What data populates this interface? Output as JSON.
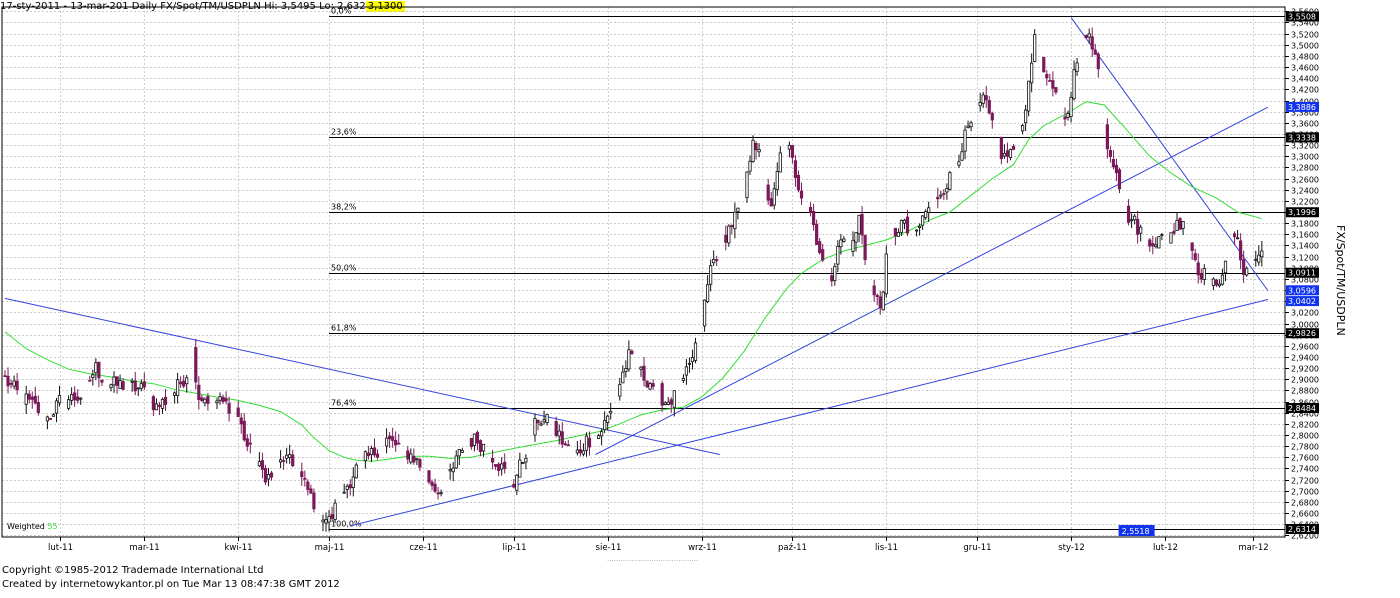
{
  "header": {
    "text": "17-sty-2011 - 13-mar-201  Daily FX/Spot/TM/USDPLN Hi: 3,5495 Lo: 2,632",
    "last_value": "3,1300"
  },
  "footer": {
    "copyright": "Copyright ©1985-2012 Trademade International Ltd",
    "created": "Created by internetowykantor.pl   on Tue Mar 13 08:47:38 GMT 2012"
  },
  "legend": {
    "prefix": "Weighted ",
    "period": "55"
  },
  "colors": {
    "up": "#111111",
    "down": "#7a1a5a",
    "ma": "#33dd33",
    "trend": "#3344dd",
    "fib": "#000000",
    "grid": "#bbbbbb",
    "tag_black": "#000000",
    "tag_blue": "#1133ee",
    "side_label": "#b8bce6"
  },
  "chart_data": {
    "type": "candlestick",
    "title": "Daily FX/Spot/TM/USDPLN",
    "ylabel": "FX/Spot/TM/USDPLN",
    "ylim": [
      2.617,
      3.5678
    ],
    "x_range": [
      "17-sty-2011",
      "13-mar-2012"
    ],
    "y_tick_start": 2.62,
    "y_tick_step": 0.02,
    "y_tick_end": 3.56,
    "x_ticks": [
      {
        "label": "lut-11",
        "day": 18
      },
      {
        "label": "mar-11",
        "day": 46
      },
      {
        "label": "kwi-11",
        "day": 77
      },
      {
        "label": "maj-11",
        "day": 107
      },
      {
        "label": "cze-11",
        "day": 138
      },
      {
        "label": "lip-11",
        "day": 168
      },
      {
        "label": "sie-11",
        "day": 199
      },
      {
        "label": "wrz-11",
        "day": 230
      },
      {
        "label": "paź-11",
        "day": 260
      },
      {
        "label": "lis-11",
        "day": 291
      },
      {
        "label": "gru-11",
        "day": 321
      },
      {
        "label": "sty-12",
        "day": 352
      },
      {
        "label": "lut-12",
        "day": 383
      },
      {
        "label": "mar-12",
        "day": 412
      }
    ],
    "fibonacci": [
      {
        "label": "0,0%",
        "value": 3.5508
      },
      {
        "label": "23,6%",
        "value": 3.3338
      },
      {
        "label": "38,2%",
        "value": 3.1996
      },
      {
        "label": "50,0%",
        "value": 3.0911
      },
      {
        "label": "61,8%",
        "value": 2.9826
      },
      {
        "label": "76,4%",
        "value": 2.8484
      },
      {
        "label": "100,0%",
        "value": 2.6314
      }
    ],
    "price_tags": [
      {
        "text": "3,5508",
        "value": 3.5508,
        "style": "black"
      },
      {
        "text": "3,3886",
        "value": 3.3886,
        "style": "blue"
      },
      {
        "text": "3,3338",
        "value": 3.3338,
        "style": "black"
      },
      {
        "text": "3,1996",
        "value": 3.1996,
        "style": "black"
      },
      {
        "text": "3,0911",
        "value": 3.0911,
        "style": "black"
      },
      {
        "text": "3,0596",
        "value": 3.0596,
        "style": "blue"
      },
      {
        "text": "3,0402",
        "value": 3.0402,
        "style": "blue"
      },
      {
        "text": "2,9826",
        "value": 2.9826,
        "style": "black"
      },
      {
        "text": "2,8484",
        "value": 2.8484,
        "style": "black"
      },
      {
        "text": "2,6314",
        "value": 2.6314,
        "style": "black"
      }
    ],
    "low_marker": {
      "text": "2,5518",
      "day": 372
    },
    "trendlines": [
      {
        "x1": 0,
        "y1": 3.045,
        "x2": 236,
        "y2": 2.765
      },
      {
        "x1": 114,
        "y1": 2.637,
        "x2": 417,
        "y2": 3.043
      },
      {
        "x1": 195,
        "y1": 2.765,
        "x2": 417,
        "y2": 3.388
      },
      {
        "x1": 352,
        "y1": 3.549,
        "x2": 417,
        "y2": 3.059
      }
    ],
    "ma_points": [
      [
        0,
        2.985
      ],
      [
        7,
        2.955
      ],
      [
        14,
        2.935
      ],
      [
        21,
        2.918
      ],
      [
        28,
        2.91
      ],
      [
        35,
        2.904
      ],
      [
        42,
        2.897
      ],
      [
        49,
        2.892
      ],
      [
        56,
        2.882
      ],
      [
        63,
        2.875
      ],
      [
        70,
        2.868
      ],
      [
        77,
        2.862
      ],
      [
        84,
        2.853
      ],
      [
        91,
        2.842
      ],
      [
        98,
        2.818
      ],
      [
        102,
        2.795
      ],
      [
        107,
        2.772
      ],
      [
        112,
        2.76
      ],
      [
        116,
        2.755
      ],
      [
        121,
        2.753
      ],
      [
        126,
        2.756
      ],
      [
        133,
        2.762
      ],
      [
        140,
        2.762
      ],
      [
        147,
        2.758
      ],
      [
        154,
        2.76
      ],
      [
        161,
        2.768
      ],
      [
        168,
        2.776
      ],
      [
        175,
        2.783
      ],
      [
        182,
        2.79
      ],
      [
        189,
        2.798
      ],
      [
        196,
        2.806
      ],
      [
        203,
        2.82
      ],
      [
        210,
        2.836
      ],
      [
        217,
        2.845
      ],
      [
        224,
        2.85
      ],
      [
        230,
        2.868
      ],
      [
        237,
        2.902
      ],
      [
        244,
        2.95
      ],
      [
        251,
        3.01
      ],
      [
        258,
        3.062
      ],
      [
        263,
        3.09
      ],
      [
        270,
        3.115
      ],
      [
        277,
        3.13
      ],
      [
        284,
        3.14
      ],
      [
        291,
        3.15
      ],
      [
        298,
        3.165
      ],
      [
        305,
        3.185
      ],
      [
        312,
        3.2
      ],
      [
        319,
        3.23
      ],
      [
        326,
        3.26
      ],
      [
        333,
        3.285
      ],
      [
        338,
        3.33
      ],
      [
        343,
        3.355
      ],
      [
        350,
        3.375
      ],
      [
        357,
        3.398
      ],
      [
        363,
        3.392
      ],
      [
        370,
        3.35
      ],
      [
        378,
        3.3
      ],
      [
        385,
        3.27
      ],
      [
        392,
        3.245
      ],
      [
        400,
        3.225
      ],
      [
        407,
        3.2
      ],
      [
        415,
        3.188
      ]
    ],
    "anchors": [
      [
        0,
        2.9
      ],
      [
        5,
        2.87
      ],
      [
        10,
        2.85
      ],
      [
        14,
        2.83
      ],
      [
        18,
        2.86
      ],
      [
        25,
        2.87
      ],
      [
        30,
        2.92
      ],
      [
        34,
        2.89
      ],
      [
        40,
        2.89
      ],
      [
        46,
        2.88
      ],
      [
        50,
        2.85
      ],
      [
        55,
        2.87
      ],
      [
        60,
        2.91
      ],
      [
        62,
        2.95
      ],
      [
        64,
        2.87
      ],
      [
        70,
        2.86
      ],
      [
        76,
        2.85
      ],
      [
        80,
        2.78
      ],
      [
        84,
        2.74
      ],
      [
        88,
        2.72
      ],
      [
        92,
        2.76
      ],
      [
        96,
        2.74
      ],
      [
        100,
        2.7
      ],
      [
        104,
        2.66
      ],
      [
        107,
        2.645
      ],
      [
        112,
        2.7
      ],
      [
        116,
        2.74
      ],
      [
        120,
        2.76
      ],
      [
        126,
        2.79
      ],
      [
        130,
        2.78
      ],
      [
        135,
        2.76
      ],
      [
        140,
        2.72
      ],
      [
        143,
        2.7
      ],
      [
        148,
        2.74
      ],
      [
        152,
        2.79
      ],
      [
        156,
        2.79
      ],
      [
        160,
        2.77
      ],
      [
        164,
        2.74
      ],
      [
        168,
        2.715
      ],
      [
        172,
        2.77
      ],
      [
        176,
        2.83
      ],
      [
        180,
        2.82
      ],
      [
        184,
        2.79
      ],
      [
        188,
        2.76
      ],
      [
        192,
        2.79
      ],
      [
        196,
        2.8
      ],
      [
        200,
        2.84
      ],
      [
        204,
        2.91
      ],
      [
        206,
        2.94
      ],
      [
        210,
        2.91
      ],
      [
        214,
        2.89
      ],
      [
        218,
        2.86
      ],
      [
        222,
        2.87
      ],
      [
        226,
        2.92
      ],
      [
        230,
        3.0
      ],
      [
        233,
        3.1
      ],
      [
        236,
        3.14
      ],
      [
        240,
        3.18
      ],
      [
        244,
        3.22
      ],
      [
        247,
        3.34
      ],
      [
        250,
        3.28
      ],
      [
        253,
        3.2
      ],
      [
        256,
        3.3
      ],
      [
        259,
        3.31
      ],
      [
        262,
        3.25
      ],
      [
        266,
        3.2
      ],
      [
        270,
        3.11
      ],
      [
        273,
        3.09
      ],
      [
        276,
        3.15
      ],
      [
        280,
        3.14
      ],
      [
        282,
        3.19
      ],
      [
        284,
        3.12
      ],
      [
        286,
        3.06
      ],
      [
        289,
        3.03
      ],
      [
        292,
        3.15
      ],
      [
        296,
        3.18
      ],
      [
        300,
        3.15
      ],
      [
        304,
        3.2
      ],
      [
        308,
        3.23
      ],
      [
        312,
        3.26
      ],
      [
        316,
        3.32
      ],
      [
        320,
        3.37
      ],
      [
        323,
        3.4
      ],
      [
        326,
        3.36
      ],
      [
        329,
        3.3
      ],
      [
        332,
        3.3
      ],
      [
        335,
        3.34
      ],
      [
        338,
        3.42
      ],
      [
        340,
        3.52
      ],
      [
        342,
        3.47
      ],
      [
        345,
        3.42
      ],
      [
        348,
        3.4
      ],
      [
        350,
        3.36
      ],
      [
        352,
        3.42
      ],
      [
        354,
        3.47
      ],
      [
        356,
        3.51
      ],
      [
        358,
        3.53
      ],
      [
        360,
        3.48
      ],
      [
        362,
        3.43
      ],
      [
        364,
        3.32
      ],
      [
        367,
        3.28
      ],
      [
        370,
        3.2
      ],
      [
        373,
        3.18
      ],
      [
        376,
        3.16
      ],
      [
        379,
        3.15
      ],
      [
        383,
        3.15
      ],
      [
        386,
        3.17
      ],
      [
        389,
        3.19
      ],
      [
        391,
        3.15
      ],
      [
        394,
        3.1
      ],
      [
        397,
        3.08
      ],
      [
        400,
        3.06
      ],
      [
        403,
        3.12
      ],
      [
        406,
        3.16
      ],
      [
        409,
        3.1
      ],
      [
        412,
        3.11
      ],
      [
        415,
        3.13
      ]
    ]
  }
}
